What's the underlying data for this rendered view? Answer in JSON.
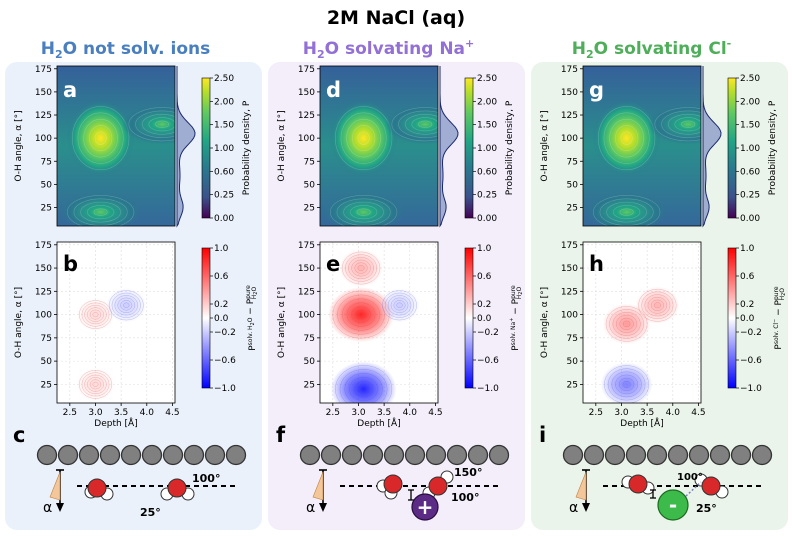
{
  "figure": {
    "title": "2M NaCl (aq)",
    "columns": [
      {
        "title_main": "H",
        "title_sub": "2",
        "title_rest": "O not solv. ions",
        "title_sup": "",
        "color": "#4a7fbf",
        "bg": "#eaf1fa",
        "panel_top": "a",
        "panel_bottom": "b",
        "panel_diagram": "c"
      },
      {
        "title_main": "H",
        "title_sub": "2",
        "title_rest": "O solvating Na",
        "title_sup": "+",
        "color": "#9370d6",
        "bg": "#f3eefa",
        "panel_top": "d",
        "panel_bottom": "e",
        "panel_diagram": "f"
      },
      {
        "title_main": "H",
        "title_sub": "2",
        "title_rest": "O solvating Cl",
        "title_sup": "-",
        "color": "#4fae5a",
        "bg": "#eaf4ea",
        "panel_top": "g",
        "panel_bottom": "h",
        "panel_diagram": "i"
      }
    ]
  },
  "chart_data": [
    {
      "type": "heatmap",
      "panels": [
        "a",
        "d",
        "g"
      ],
      "title": "",
      "xlabel": "",
      "ylabel": "O-H angle, α [°]",
      "xlim": [
        2.25,
        4.55
      ],
      "ylim": [
        5,
        178
      ],
      "yticks": [
        25,
        50,
        75,
        100,
        125,
        150,
        175
      ],
      "colorbar": {
        "label": "Probability density, P",
        "ticks": [
          "0.00",
          "0.25",
          "0.60",
          "1.00",
          "1.50",
          "2.00",
          "2.50"
        ],
        "colormap": "viridis"
      },
      "marginal": "density of α, peak near 100° with shoulder near 20°",
      "peaks": [
        {
          "depth": 3.1,
          "angle": 100,
          "level": "high"
        },
        {
          "depth": 3.1,
          "angle": 20,
          "level": "medium"
        },
        {
          "depth": 4.3,
          "angle": 115,
          "level": "medium"
        }
      ]
    },
    {
      "type": "heatmap",
      "panels": [
        "b",
        "e",
        "h"
      ],
      "title": "",
      "xlabel": "Depth [Å]",
      "ylabel": "O-H angle, α [°]",
      "xlim": [
        2.25,
        4.55
      ],
      "ylim": [
        5,
        178
      ],
      "xticks": [
        "2.5",
        "3.0",
        "3.5",
        "4.0",
        "4.5"
      ],
      "yticks": [
        25,
        50,
        75,
        100,
        125,
        150,
        175
      ],
      "colorbar": {
        "ticks": [
          "1.0",
          "0.6",
          "0.2",
          "0.0",
          "−0.2",
          "−0.6",
          "−1.0"
        ],
        "colormap": "bwr"
      },
      "colorbar_labels": [
        {
          "pre": "P",
          "sup": "solv. H",
          "supsub": "2",
          "suprest": "O",
          "post": " − P",
          "post_sup": "pure",
          "post_sub": "H",
          "post_subsub": "2",
          "post_rest": "O"
        },
        {
          "pre": "P",
          "sup": "solv. Na",
          "supsup": "+",
          "post": " − P",
          "post_sup": "pure",
          "post_sub": "H",
          "post_subsub": "2",
          "post_rest": "O"
        },
        {
          "pre": "P",
          "sup": "solv. Cl",
          "supsup": "−",
          "post": " − P",
          "post_sup": "pure",
          "post_sub": "H",
          "post_subsub": "2",
          "post_rest": "O"
        }
      ],
      "blobs": [
        [
          {
            "depth": 3.0,
            "angle": 100,
            "sign": 1,
            "amp": 0.15
          },
          {
            "depth": 3.0,
            "angle": 25,
            "sign": 1,
            "amp": 0.15
          },
          {
            "depth": 3.6,
            "angle": 110,
            "sign": -1,
            "amp": 0.2
          }
        ],
        [
          {
            "depth": 3.05,
            "angle": 100,
            "sign": 1,
            "amp": 0.85
          },
          {
            "depth": 3.05,
            "angle": 150,
            "sign": 1,
            "amp": 0.3
          },
          {
            "depth": 3.1,
            "angle": 20,
            "sign": -1,
            "amp": 0.85
          },
          {
            "depth": 3.8,
            "angle": 110,
            "sign": -1,
            "amp": 0.2
          }
        ],
        [
          {
            "depth": 3.1,
            "angle": 90,
            "sign": 1,
            "amp": 0.4
          },
          {
            "depth": 3.7,
            "angle": 110,
            "sign": 1,
            "amp": 0.3
          },
          {
            "depth": 3.1,
            "angle": 25,
            "sign": -1,
            "amp": 0.5
          }
        ]
      ]
    }
  ],
  "diagrams": {
    "alpha_label": "α",
    "c": {
      "angles": [
        "100°",
        "25°"
      ]
    },
    "f": {
      "angles": [
        "150°",
        "100°"
      ],
      "ion_symbol": "+"
    },
    "i": {
      "angles": [
        "100°",
        "25°"
      ],
      "ion_symbol": "-"
    }
  }
}
